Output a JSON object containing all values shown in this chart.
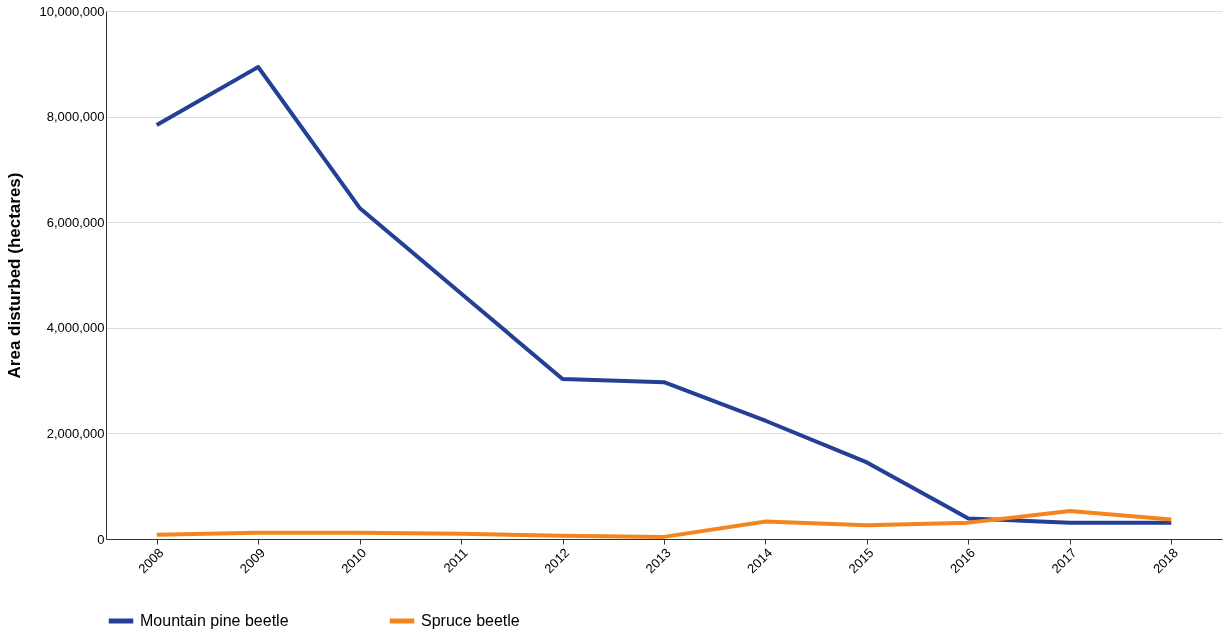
{
  "chart_data": {
    "type": "line",
    "ylabel": "Area disturbed (hectares)",
    "categories": [
      "2008",
      "2009",
      "2010",
      "2011",
      "2012",
      "2013",
      "2014",
      "2015",
      "2016",
      "2017",
      "2018"
    ],
    "series": [
      {
        "name": "Mountain pine beetle",
        "color": "#233f96",
        "values": [
          7840000,
          8940000,
          6270000,
          4650000,
          3030000,
          2970000,
          2240000,
          1450000,
          390000,
          310000,
          310000
        ]
      },
      {
        "name": "Spruce beetle",
        "color": "#f5841f",
        "values": [
          80000,
          120000,
          120000,
          100000,
          60000,
          40000,
          330000,
          260000,
          310000,
          530000,
          370000
        ]
      }
    ],
    "ylim": [
      0,
      10000000
    ],
    "yticks": [
      0,
      {
        "value": 2000000,
        "label": "2,000,000"
      },
      {
        "value": 4000000,
        "label": "4,000,000"
      },
      {
        "value": 6000000,
        "label": "6,000,000"
      },
      {
        "value": 8000000,
        "label": "8,000,000"
      },
      {
        "value": 10000000,
        "label": "10,000,000"
      }
    ],
    "grid": "y",
    "legend": "bottom left",
    "marker": "none",
    "line_style": "solid"
  }
}
